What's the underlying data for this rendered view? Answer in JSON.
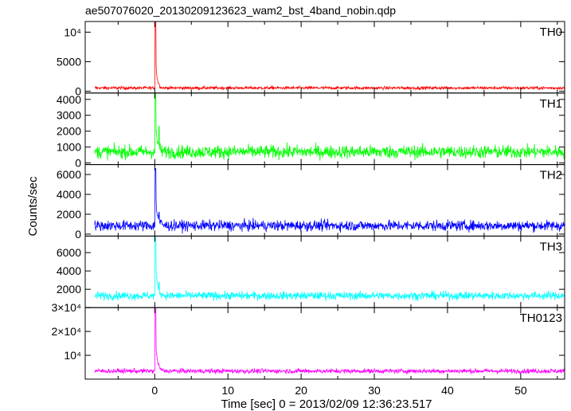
{
  "title": "ae507076020_20130209123623_wam2_bst_4band_nobin.qdp",
  "xlabel": "Time [sec] 0 = 2013/02/09 12:36:23.517",
  "ylabel": "Counts/sec",
  "chart_data": {
    "type": "line",
    "title": "ae507076020_20130209123623_wam2_bst_4band_nobin.qdp",
    "xlabel": "Time [sec] 0 = 2013/02/09 12:36:23.517",
    "ylabel": "Counts/sec",
    "xlim": [
      -9.5,
      56
    ],
    "x_ticks": [
      0,
      10,
      20,
      30,
      40,
      50
    ],
    "x_tick_labels": [
      "0",
      "10",
      "20",
      "30",
      "40",
      "50"
    ],
    "grid": false,
    "legend": "none",
    "x_range_data": [
      -8.2,
      56
    ],
    "panels": [
      {
        "name": "TH0",
        "color": "#ff0000",
        "ylim": [
          -300,
          11800
        ],
        "y_ticks": [
          0,
          5000,
          10000
        ],
        "y_tick_labels": [
          "0",
          "5000",
          "10⁴"
        ],
        "baseline": 560,
        "noise": 190,
        "peak": {
          "x": 0.1,
          "value": 11800
        },
        "decay": 0.2,
        "late_bumps": [
          {
            "x": 0.6,
            "value": 1300
          }
        ]
      },
      {
        "name": "TH1",
        "color": "#00ff00",
        "ylim": [
          -100,
          4400
        ],
        "y_ticks": [
          0,
          1000,
          2000,
          3000,
          4000
        ],
        "y_tick_labels": [
          "0",
          "1000",
          "2000",
          "3000",
          "4000"
        ],
        "baseline": 700,
        "noise": 300,
        "peak": {
          "x": 0.1,
          "value": 4400
        },
        "decay": 0.25,
        "late_bumps": [
          {
            "x": 0.6,
            "value": 2300
          }
        ]
      },
      {
        "name": "TH2",
        "color": "#0000ff",
        "ylim": [
          -200,
          7000
        ],
        "y_ticks": [
          0,
          2000,
          4000,
          6000
        ],
        "y_tick_labels": [
          "0",
          "2000",
          "4000",
          "6000"
        ],
        "baseline": 850,
        "noise": 380,
        "peak": {
          "x": 0.1,
          "value": 6600
        },
        "decay": 0.3,
        "late_bumps": [
          {
            "x": 0.6,
            "value": 2200
          }
        ]
      },
      {
        "name": "TH3",
        "color": "#00ffff",
        "ylim": [
          0,
          7800
        ],
        "y_ticks": [
          2000,
          4000,
          6000
        ],
        "y_tick_labels": [
          "2000",
          "4000",
          "6000"
        ],
        "baseline": 1300,
        "noise": 320,
        "peak": {
          "x": 0.1,
          "value": 7800
        },
        "decay": 0.3,
        "late_bumps": [
          {
            "x": 0.6,
            "value": 2800
          }
        ]
      },
      {
        "name": "TH0123",
        "color": "#ff00ff",
        "ylim": [
          0,
          30000
        ],
        "y_ticks": [
          10000,
          20000,
          30000
        ],
        "y_tick_labels": [
          "10⁴",
          "2×10⁴",
          "3×10⁴"
        ],
        "baseline": 3400,
        "noise": 700,
        "peak": {
          "x": 0.1,
          "value": 30000
        },
        "decay": 0.25,
        "late_bumps": [
          {
            "x": 0.6,
            "value": 6000
          }
        ]
      }
    ]
  }
}
